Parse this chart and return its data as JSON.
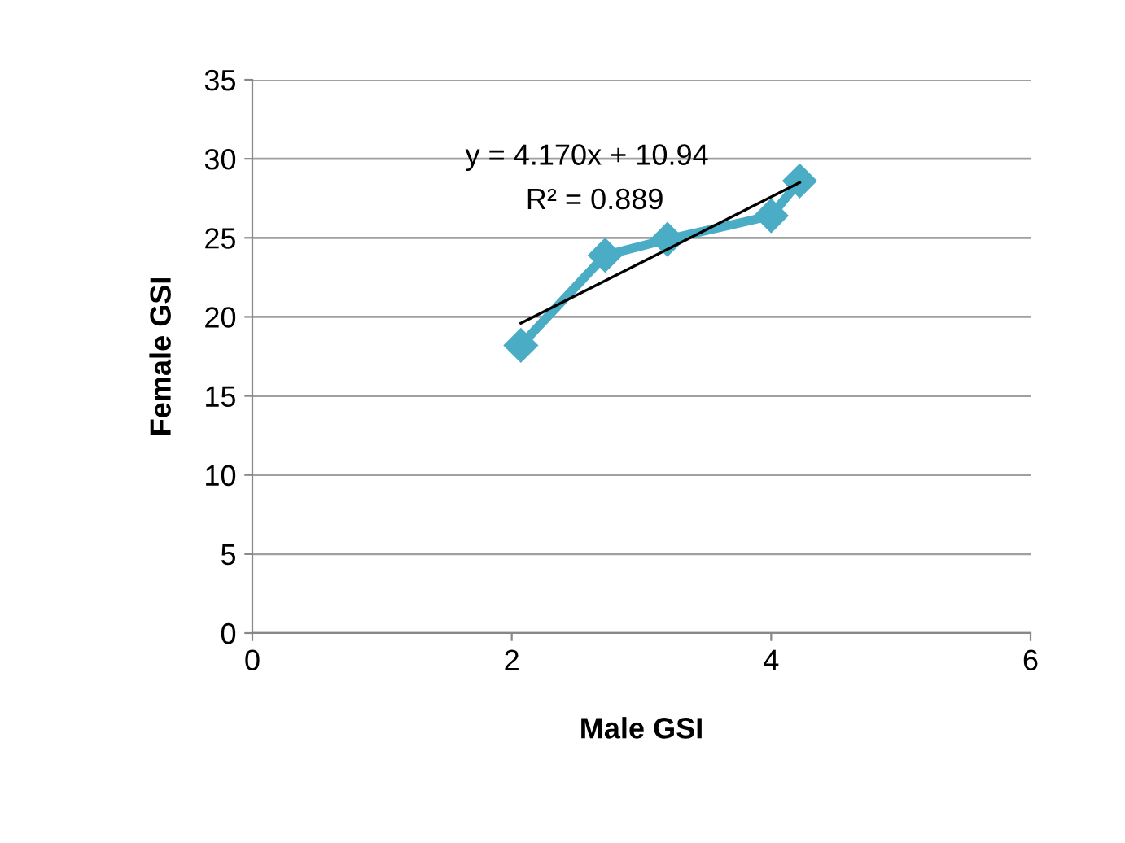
{
  "chart_data": {
    "type": "line",
    "xlabel": "Male GSI",
    "ylabel": "Female GSI",
    "xlim": [
      0,
      6
    ],
    "xticks": [
      0,
      2,
      4,
      6
    ],
    "ylim": [
      0,
      35
    ],
    "yticks": [
      0,
      5,
      10,
      15,
      20,
      25,
      30,
      35
    ],
    "grid": "y",
    "marker": "diamond",
    "line_style": "solid",
    "series": [
      {
        "color": "#4bacc6",
        "x": [
          2.07,
          2.72,
          3.2,
          4.0,
          4.22
        ],
        "values": [
          18.2,
          23.9,
          24.9,
          26.4,
          28.6
        ]
      },
      {
        "color": "#000000",
        "x": [
          2.07,
          4.22
        ],
        "values": [
          19.6,
          28.5
        ],
        "marker": "none"
      }
    ],
    "annotations": [
      "y = 4.170x + 10.94",
      "R² = 0.889"
    ]
  }
}
